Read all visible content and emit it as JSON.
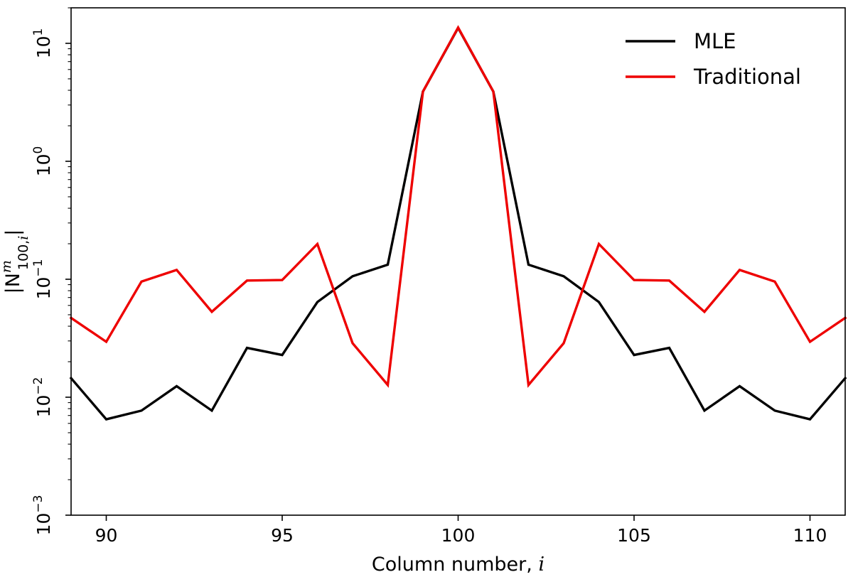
{
  "chart_data": {
    "type": "line",
    "x": [
      89,
      90,
      91,
      92,
      93,
      94,
      95,
      96,
      97,
      98,
      99,
      100,
      101,
      102,
      103,
      104,
      105,
      106,
      107,
      108,
      109,
      110,
      111
    ],
    "series": [
      {
        "name": "MLE",
        "color": "#000000",
        "values": [
          0.0145,
          0.0065,
          0.0077,
          0.0124,
          0.0077,
          0.0262,
          0.0228,
          0.0641,
          0.106,
          0.133,
          3.9,
          13.5,
          3.9,
          0.133,
          0.106,
          0.0641,
          0.0228,
          0.0262,
          0.0077,
          0.0124,
          0.0077,
          0.0065,
          0.0145
        ]
      },
      {
        "name": "Traditional",
        "color": "#ee0000",
        "values": [
          0.047,
          0.0295,
          0.0955,
          0.12,
          0.053,
          0.0975,
          0.0985,
          0.199,
          0.0287,
          0.0127,
          3.9,
          13.6,
          3.9,
          0.0127,
          0.0287,
          0.199,
          0.0985,
          0.0975,
          0.053,
          0.12,
          0.0955,
          0.0295,
          0.047
        ]
      }
    ],
    "xlim": [
      89,
      111
    ],
    "ylim": [
      0.001,
      20
    ],
    "yscale": "log",
    "xticks": [
      90,
      95,
      100,
      105,
      110
    ],
    "xtick_labels": [
      "90",
      "95",
      "100",
      "105",
      "110"
    ],
    "yticks": [
      0.001,
      0.01,
      0.1,
      1,
      10
    ],
    "ytick_bases": [
      "10",
      "10",
      "10",
      "10",
      "10"
    ],
    "ytick_exponents": [
      "−3",
      "−2",
      "−1",
      "0",
      "1"
    ],
    "xlabel_text": "Column number, ",
    "xlabel_var": "i",
    "ylabel_pre": "|N",
    "ylabel_sup": "m",
    "ylabel_sub_a": "100,",
    "ylabel_sub_b": "i",
    "ylabel_post": "|",
    "legend_position": "upper-right",
    "grid": false
  }
}
